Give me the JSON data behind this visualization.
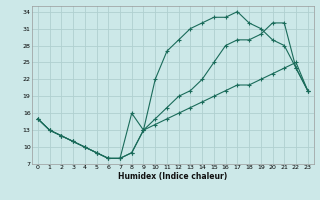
{
  "xlabel": "Humidex (Indice chaleur)",
  "bg_color": "#cce8e8",
  "grid_color": "#b0d0d0",
  "line_color": "#1a6b5a",
  "xlim": [
    -0.5,
    23.5
  ],
  "ylim": [
    7,
    35
  ],
  "xticks": [
    0,
    1,
    2,
    3,
    4,
    5,
    6,
    7,
    8,
    9,
    10,
    11,
    12,
    13,
    14,
    15,
    16,
    17,
    18,
    19,
    20,
    21,
    22,
    23
  ],
  "yticks": [
    7,
    10,
    13,
    16,
    19,
    22,
    25,
    28,
    31,
    34
  ],
  "curve1_x": [
    0,
    1,
    2,
    3,
    4,
    5,
    6,
    7,
    8,
    9,
    10,
    11,
    12,
    13,
    14,
    15,
    16,
    17,
    18,
    19,
    20,
    21,
    22,
    23
  ],
  "curve1_y": [
    15,
    13,
    12,
    11,
    10,
    9,
    8,
    8,
    16,
    13,
    22,
    27,
    29,
    31,
    32,
    33,
    33,
    34,
    32,
    31,
    29,
    28,
    24,
    20
  ],
  "curve2_x": [
    0,
    1,
    2,
    3,
    4,
    5,
    6,
    7,
    8,
    9,
    10,
    11,
    12,
    13,
    14,
    15,
    16,
    17,
    18,
    19,
    20,
    21,
    22,
    23
  ],
  "curve2_y": [
    15,
    13,
    12,
    11,
    10,
    9,
    8,
    8,
    9,
    13,
    15,
    17,
    19,
    20,
    22,
    25,
    28,
    29,
    29,
    30,
    32,
    32,
    24,
    20
  ],
  "curve3_x": [
    0,
    1,
    2,
    3,
    4,
    5,
    6,
    7,
    8,
    9,
    10,
    11,
    12,
    13,
    14,
    15,
    16,
    17,
    18,
    19,
    20,
    21,
    22,
    23
  ],
  "curve3_y": [
    15,
    13,
    12,
    11,
    10,
    9,
    8,
    8,
    9,
    13,
    14,
    15,
    16,
    17,
    18,
    19,
    20,
    21,
    21,
    22,
    23,
    24,
    25,
    20
  ]
}
